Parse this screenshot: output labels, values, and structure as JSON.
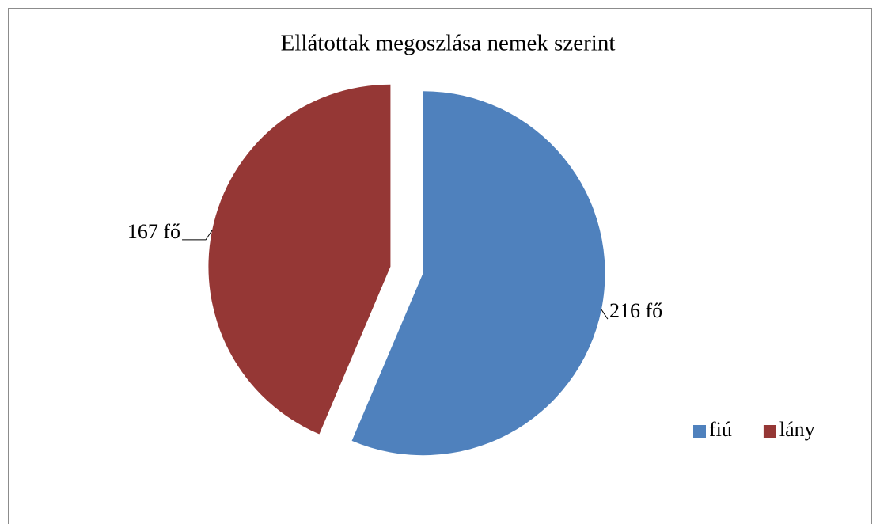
{
  "chart_data": {
    "type": "pie",
    "title": "Ellátottak megoszlása nemek szerint",
    "categories": [
      "fiú",
      "lány"
    ],
    "values": [
      216,
      167
    ],
    "value_labels": [
      "216 fő",
      "167 fő"
    ],
    "colors": [
      "#4f81bd",
      "#953735"
    ],
    "exploded": true,
    "legend": "right"
  }
}
